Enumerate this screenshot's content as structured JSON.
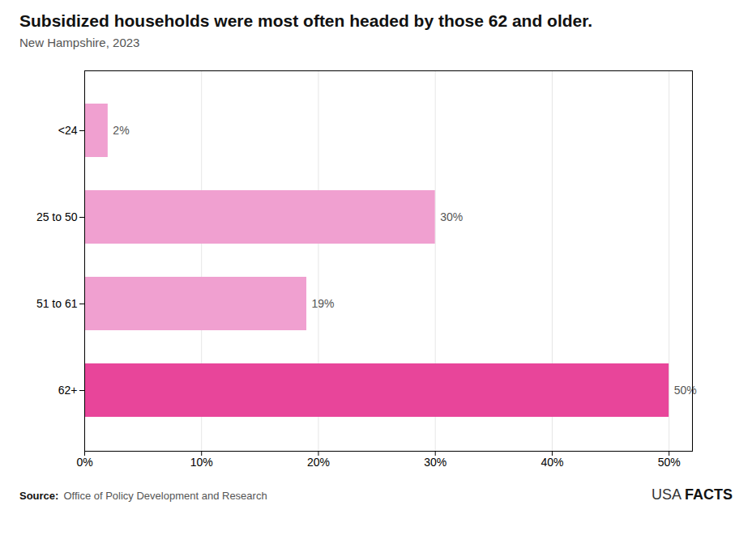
{
  "chart_data": {
    "type": "bar",
    "orientation": "horizontal",
    "title": "Subsidized households were most often headed by those 62 and older.",
    "subtitle": "New Hampshire, 2023",
    "categories": [
      "62+",
      "51 to 61",
      "25 to 50",
      "<24"
    ],
    "values": [
      50,
      19,
      30,
      2
    ],
    "value_labels": [
      "50%",
      "19%",
      "30%",
      "2%"
    ],
    "data_labels": true,
    "colors": [
      "#e8459a",
      "#f0a0d0",
      "#f0a0d0",
      "#f0a0d0"
    ],
    "xlim": [
      0,
      52
    ],
    "xticks": [
      {
        "value": 0,
        "label": "0%"
      },
      {
        "value": 10,
        "label": "10%"
      },
      {
        "value": 20,
        "label": "20%"
      },
      {
        "value": 30,
        "label": "30%"
      },
      {
        "value": 40,
        "label": "40%"
      },
      {
        "value": 50,
        "label": "50%"
      }
    ],
    "grid": true,
    "source_label": "Source:",
    "source": "Office of Policy Development and Research",
    "branding": [
      "USA",
      "FACTS"
    ]
  }
}
